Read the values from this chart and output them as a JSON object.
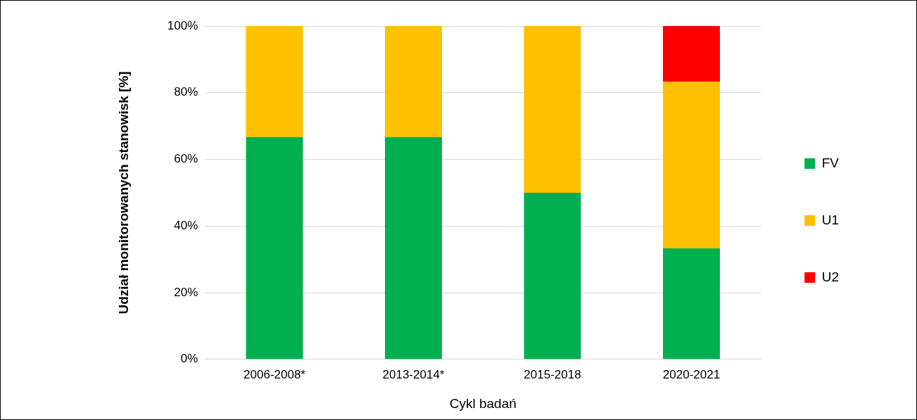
{
  "chart_data": {
    "type": "bar",
    "stacked": true,
    "xlabel": "Cykl badań",
    "ylabel": "Udział monitorowanych stanowisk [%]",
    "categories": [
      "2006-2008*",
      "2013-2014*",
      "2015-2018",
      "2020-2021"
    ],
    "series": [
      {
        "name": "FV",
        "color": "#00b050",
        "values": [
          66.7,
          66.7,
          50,
          33.3
        ]
      },
      {
        "name": "U1",
        "color": "#ffc000",
        "values": [
          33.3,
          33.3,
          50,
          50
        ]
      },
      {
        "name": "U2",
        "color": "#ff0000",
        "values": [
          0,
          0,
          0,
          16.7
        ]
      }
    ],
    "ylim": [
      0,
      100
    ],
    "yticks": [
      {
        "value": 0,
        "label": "0%"
      },
      {
        "value": 20,
        "label": "20%"
      },
      {
        "value": 40,
        "label": "40%"
      },
      {
        "value": 60,
        "label": "60%"
      },
      {
        "value": 80,
        "label": "80%"
      },
      {
        "value": 100,
        "label": "100%"
      }
    ],
    "grid": "y",
    "legend": "right"
  }
}
